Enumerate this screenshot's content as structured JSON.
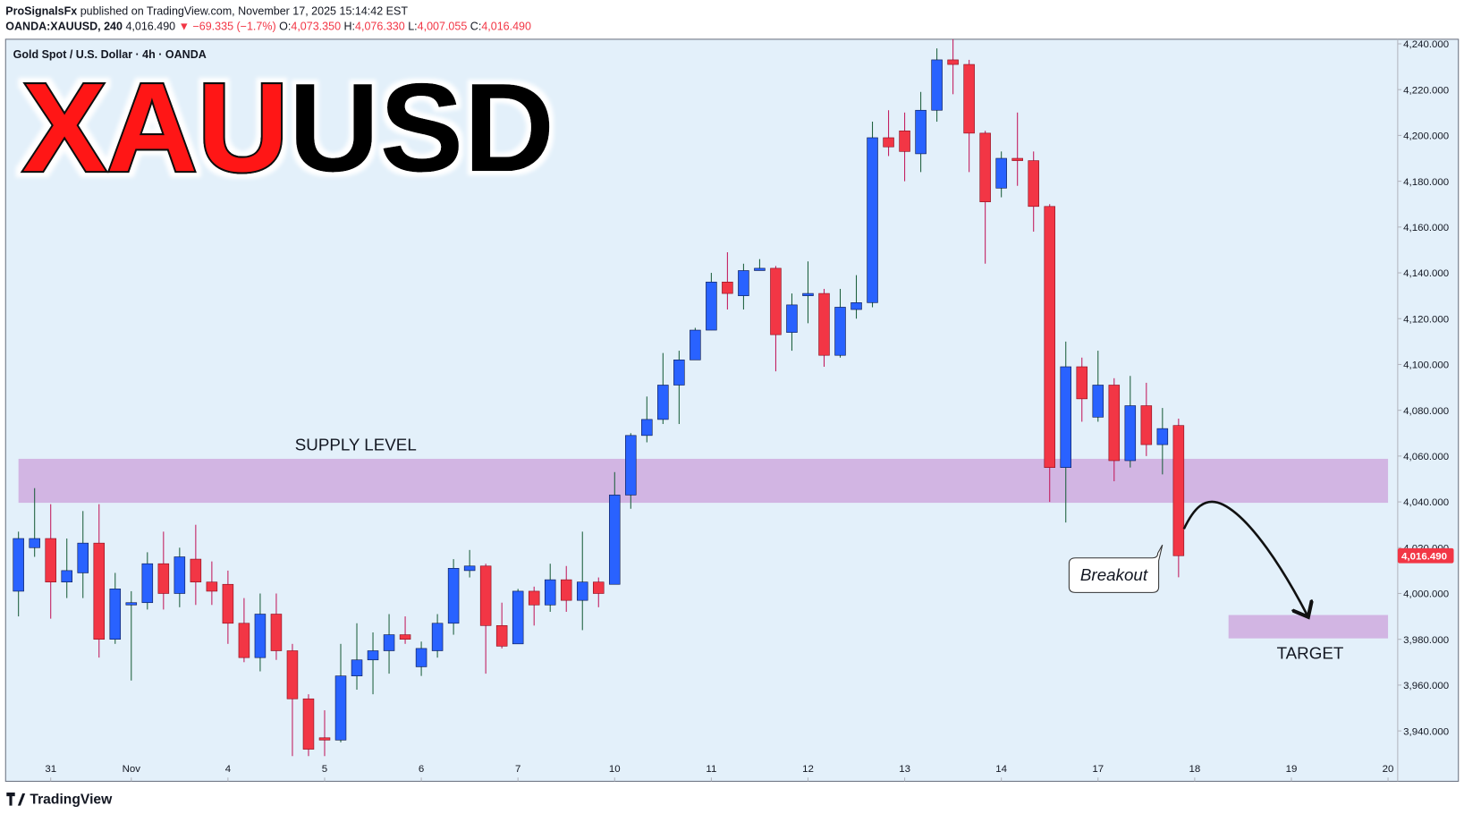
{
  "header": {
    "author": "ProSignalsFx",
    "published": "published on TradingView.com, November 17, 2025 15:14:42 EST",
    "symbol": "OANDA:XAUUSD, 240",
    "last": "4,016.490",
    "change": "▼ −69.335 (−1.7%)",
    "ohlc": [
      {
        "key": "O:",
        "value": "4,073.350"
      },
      {
        "key": "H:",
        "value": "4,076.330"
      },
      {
        "key": "L:",
        "value": "4,007.055"
      },
      {
        "key": "C:",
        "value": "4,016.490"
      }
    ]
  },
  "banner": {
    "part1": "XAU",
    "part2": "USD"
  },
  "logo": "TradingView",
  "chart_data": {
    "type": "candlestick",
    "title": "Gold Spot / U.S. Dollar · 4h · OANDA",
    "up_color": "#2962ff",
    "down_color": "#f23645",
    "open": [
      4001,
      4020,
      4024,
      4005,
      4009,
      4022,
      3980,
      3995,
      3996,
      4013,
      4000,
      4015,
      4005,
      4004,
      3987,
      3972,
      3991,
      3975,
      3954,
      3937,
      3936,
      3964,
      3971,
      3975,
      3982,
      3968,
      3975,
      3987,
      4010,
      4012,
      3986,
      3978,
      4001,
      3995,
      4006,
      3997,
      4005,
      4004,
      4043,
      4069,
      4076,
      4091,
      4102,
      4115,
      4136,
      4130,
      4141,
      4142,
      4114,
      4130,
      4131,
      4104,
      4124,
      4127,
      4199,
      4202,
      4192,
      4211,
      4233,
      4231,
      4201,
      4177,
      4190,
      4189,
      4169,
      4055,
      4099,
      4077,
      4091,
      4058,
      4082,
      4065,
      4073.35
    ],
    "high": [
      4027,
      4046,
      4039,
      4024,
      4036,
      4039,
      4009,
      4001,
      4018,
      4027,
      4020,
      4030,
      4014,
      4010,
      3998,
      4000,
      4000,
      3978,
      3956,
      3949,
      3978,
      3987,
      3983,
      3991,
      3990,
      3979,
      3991,
      4015,
      4019,
      4013,
      3996,
      4002,
      4003,
      4013,
      4012,
      4027,
      4007,
      4053,
      4070,
      4086,
      4105,
      4106,
      4116,
      4140,
      4149,
      4144,
      4146,
      4143,
      4131,
      4145,
      4133,
      4133,
      4139,
      4206,
      4211,
      4210,
      4219,
      4238,
      4242,
      4233,
      4202,
      4193,
      4210,
      4193,
      4170,
      4110,
      4103,
      4106,
      4094,
      4095,
      4092,
      4081,
      4076.33
    ],
    "low": [
      3990,
      4016,
      3989,
      3998,
      3998,
      3972,
      3978,
      3962,
      3993,
      3993,
      3994,
      3995,
      3995,
      3978,
      3970,
      3966,
      3971,
      3929,
      3929,
      3929,
      3935,
      3958,
      3956,
      3965,
      3978,
      3964,
      3972,
      3982,
      4007,
      3965,
      3976,
      3978,
      3986,
      3992,
      3992,
      3984,
      3994,
      4004,
      4037,
      4066,
      4074,
      4074,
      4102,
      4115,
      4124,
      4124,
      4141,
      4097,
      4106,
      4118,
      4099,
      4103,
      4120,
      4125,
      4191,
      4180,
      4184,
      4206,
      4218,
      4184,
      4144,
      4173,
      4178,
      4158,
      4040,
      4031,
      4075,
      4075,
      4049,
      4055,
      4060,
      4052,
      4007.055
    ],
    "close": [
      4024,
      4024,
      4005,
      4010,
      4022,
      3980,
      4002,
      3996,
      4013,
      4000,
      4016,
      4005,
      4001,
      3987,
      3972,
      3991,
      3975,
      3954,
      3932,
      3936,
      3964,
      3971,
      3975,
      3982,
      3980,
      3976,
      3987,
      4011,
      4012,
      3986,
      3977,
      4001,
      3995,
      4006,
      3997,
      4005,
      4000,
      4043,
      4069,
      4076,
      4091,
      4102,
      4115,
      4136,
      4131,
      4141,
      4142,
      4113,
      4126,
      4131,
      4104,
      4125,
      4127,
      4199,
      4195,
      4193,
      4211,
      4233,
      4231,
      4201,
      4171,
      4190,
      4189,
      4169,
      4055,
      4099,
      4085,
      4091,
      4058,
      4082,
      4065,
      4072,
      4016.49
    ],
    "xlim": [
      -0.8,
      85.6
    ],
    "xticks": [
      {
        "value": 2,
        "label": "31"
      },
      {
        "value": 7,
        "label": "Nov"
      },
      {
        "value": 13,
        "label": "4"
      },
      {
        "value": 19,
        "label": "5"
      },
      {
        "value": 25,
        "label": "6"
      },
      {
        "value": 31,
        "label": "7"
      },
      {
        "value": 37,
        "label": "10"
      },
      {
        "value": 43,
        "label": "11"
      },
      {
        "value": 49,
        "label": "12"
      },
      {
        "value": 55,
        "label": "13"
      },
      {
        "value": 61,
        "label": "14"
      },
      {
        "value": 67,
        "label": "17"
      },
      {
        "value": 73,
        "label": "18"
      },
      {
        "value": 79,
        "label": "19"
      },
      {
        "value": 85,
        "label": "20"
      }
    ],
    "ylim": [
      3918,
      4242
    ],
    "yticks": [
      {
        "value": 3940,
        "label": "3,940.000"
      },
      {
        "value": 3960,
        "label": "3,960.000"
      },
      {
        "value": 3980,
        "label": "3,980.000"
      },
      {
        "value": 4000,
        "label": "4,000.000"
      },
      {
        "value": 4020,
        "label": "4,020.000"
      },
      {
        "value": 4040,
        "label": "4,040.000"
      },
      {
        "value": 4060,
        "label": "4,060.000"
      },
      {
        "value": 4080,
        "label": "4,080.000"
      },
      {
        "value": 4100,
        "label": "4,100.000"
      },
      {
        "value": 4120,
        "label": "4,120.000"
      },
      {
        "value": 4140,
        "label": "4,140.000"
      },
      {
        "value": 4160,
        "label": "4,160.000"
      },
      {
        "value": 4180,
        "label": "4,180.000"
      },
      {
        "value": 4200,
        "label": "4,200.000"
      },
      {
        "value": 4220,
        "label": "4,220.000"
      },
      {
        "value": 4240,
        "label": "4,240.000"
      }
    ],
    "last_price": {
      "value": 4016.49,
      "label": "4,016.490"
    },
    "zones": [
      {
        "label": "SUPPLY LEVEL",
        "x": [
          0,
          85
        ],
        "y": [
          4039.6,
          4058.8
        ],
        "color": "#cfaee0"
      },
      {
        "label": "TARGET",
        "x": [
          75.1,
          85
        ],
        "y": [
          3980.4,
          3990.6
        ],
        "color": "#cfaee0"
      }
    ],
    "annotation": "Breakout"
  }
}
